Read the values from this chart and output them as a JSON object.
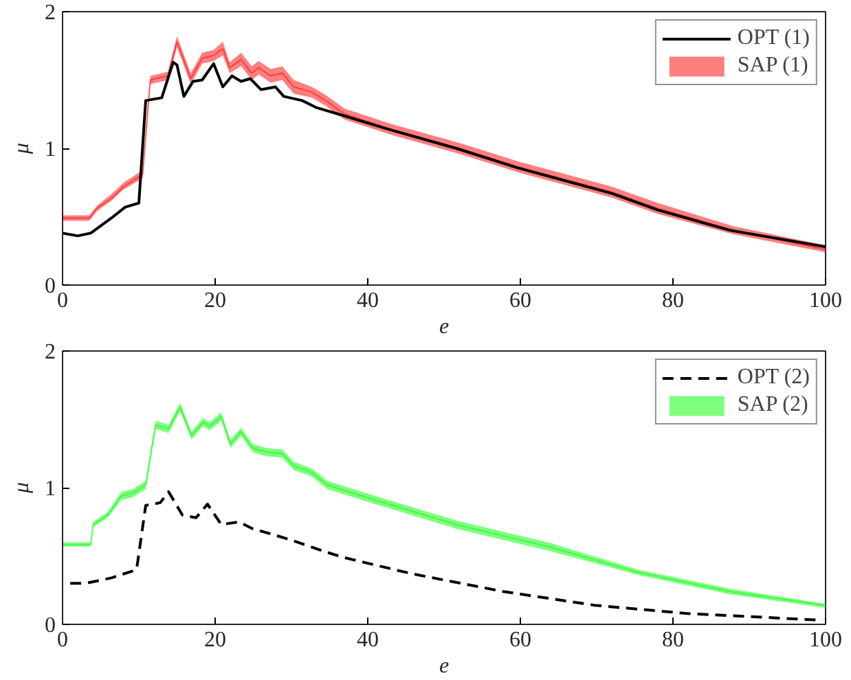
{
  "chart_data": [
    {
      "type": "line",
      "xlabel": "e",
      "ylabel": "μ",
      "xlim": [
        0,
        100
      ],
      "ylim": [
        0,
        2
      ],
      "xticks": [
        0,
        20,
        40,
        60,
        80,
        100
      ],
      "yticks": [
        0,
        1,
        2
      ],
      "grid": false,
      "legend": "top right",
      "series": [
        {
          "name": "OPT (1)",
          "color": "#000000",
          "line_style": "solid",
          "x": [
            0,
            2,
            3.7,
            6.4,
            8.2,
            10,
            10.9,
            13,
            14.5,
            15,
            15.9,
            17.1,
            18.3,
            19.8,
            21,
            22.2,
            23.4,
            24.6,
            26,
            27.9,
            29,
            31.4,
            33.2,
            36.8,
            42.7,
            51.6,
            59.5,
            72,
            78,
            87.5,
            100
          ],
          "values": [
            0.38,
            0.36,
            0.38,
            0.49,
            0.57,
            0.6,
            1.35,
            1.37,
            1.63,
            1.61,
            1.38,
            1.49,
            1.5,
            1.62,
            1.45,
            1.53,
            1.49,
            1.51,
            1.43,
            1.45,
            1.38,
            1.35,
            1.3,
            1.24,
            1.14,
            1.0,
            0.86,
            0.67,
            0.55,
            0.4,
            0.28
          ]
        },
        {
          "name": "SAP (1)",
          "color": "#ff0000",
          "x": [
            0,
            3.5,
            4.5,
            6.5,
            8,
            10.5,
            11.5,
            13.8,
            15,
            16.8,
            18.3,
            19.8,
            21,
            21.9,
            23.4,
            24.8,
            25.7,
            27.3,
            28.8,
            30.3,
            32.7,
            34.5,
            37,
            43,
            52,
            60,
            72,
            78,
            88,
            100
          ],
          "lower": [
            0.47,
            0.47,
            0.54,
            0.62,
            0.7,
            0.78,
            1.47,
            1.5,
            1.74,
            1.47,
            1.62,
            1.64,
            1.68,
            1.55,
            1.6,
            1.5,
            1.54,
            1.48,
            1.5,
            1.4,
            1.37,
            1.31,
            1.21,
            1.1,
            0.96,
            0.82,
            0.64,
            0.52,
            0.37,
            0.24
          ],
          "upper": [
            0.51,
            0.51,
            0.58,
            0.67,
            0.75,
            0.84,
            1.53,
            1.56,
            1.82,
            1.55,
            1.7,
            1.72,
            1.78,
            1.63,
            1.7,
            1.6,
            1.64,
            1.58,
            1.6,
            1.5,
            1.45,
            1.39,
            1.29,
            1.18,
            1.04,
            0.9,
            0.72,
            0.6,
            0.43,
            0.29
          ],
          "values": [
            0.49,
            0.49,
            0.56,
            0.64,
            0.72,
            0.81,
            1.5,
            1.53,
            1.78,
            1.51,
            1.66,
            1.68,
            1.73,
            1.59,
            1.65,
            1.55,
            1.59,
            1.53,
            1.55,
            1.45,
            1.41,
            1.35,
            1.25,
            1.14,
            1.0,
            0.86,
            0.68,
            0.56,
            0.4,
            0.26
          ]
        }
      ]
    },
    {
      "type": "line",
      "xlabel": "e",
      "ylabel": "μ",
      "xlim": [
        0,
        100
      ],
      "ylim": [
        0,
        2
      ],
      "xticks": [
        0,
        20,
        40,
        60,
        80,
        100
      ],
      "yticks": [
        0,
        1,
        2
      ],
      "grid": false,
      "legend": "top right",
      "series": [
        {
          "name": "OPT (2)",
          "color": "#000000",
          "line_style": "dashed",
          "x": [
            1,
            3,
            6.4,
            9.7,
            10.9,
            12.8,
            13.9,
            15.7,
            17.5,
            19,
            20.8,
            23.1,
            24.9,
            27.4,
            29.8,
            34.5,
            36.8,
            45.8,
            57.8,
            69.7,
            81.7,
            99.6
          ],
          "values": [
            0.3,
            0.3,
            0.34,
            0.4,
            0.87,
            0.89,
            0.97,
            0.8,
            0.78,
            0.88,
            0.73,
            0.75,
            0.7,
            0.66,
            0.62,
            0.53,
            0.49,
            0.37,
            0.24,
            0.14,
            0.08,
            0.03
          ]
        },
        {
          "name": "SAP (2)",
          "color": "#00ff00",
          "x": [
            0,
            3.7,
            4,
            5.9,
            7.7,
            9.2,
            10.9,
            12.2,
            13.9,
            15.4,
            16.9,
            18.4,
            19.3,
            20.8,
            22,
            23.4,
            24.9,
            26.7,
            28.8,
            30.3,
            32.7,
            34.7,
            39.8,
            51.6,
            63.6,
            75.5,
            87.5,
            100
          ],
          "lower": [
            0.57,
            0.57,
            0.71,
            0.78,
            0.91,
            0.93,
            0.99,
            1.43,
            1.4,
            1.56,
            1.35,
            1.45,
            1.42,
            1.49,
            1.29,
            1.38,
            1.26,
            1.23,
            1.22,
            1.13,
            1.08,
            0.99,
            0.9,
            0.7,
            0.54,
            0.36,
            0.22,
            0.12
          ],
          "upper": [
            0.6,
            0.6,
            0.75,
            0.82,
            0.97,
            0.99,
            1.05,
            1.49,
            1.46,
            1.62,
            1.41,
            1.51,
            1.48,
            1.55,
            1.35,
            1.44,
            1.32,
            1.29,
            1.28,
            1.19,
            1.14,
            1.05,
            0.96,
            0.76,
            0.6,
            0.4,
            0.26,
            0.15
          ],
          "values": [
            0.58,
            0.58,
            0.73,
            0.8,
            0.94,
            0.96,
            1.02,
            1.46,
            1.43,
            1.59,
            1.38,
            1.48,
            1.45,
            1.52,
            1.32,
            1.41,
            1.29,
            1.26,
            1.25,
            1.16,
            1.11,
            1.02,
            0.93,
            0.73,
            0.57,
            0.38,
            0.24,
            0.14
          ]
        }
      ]
    }
  ]
}
